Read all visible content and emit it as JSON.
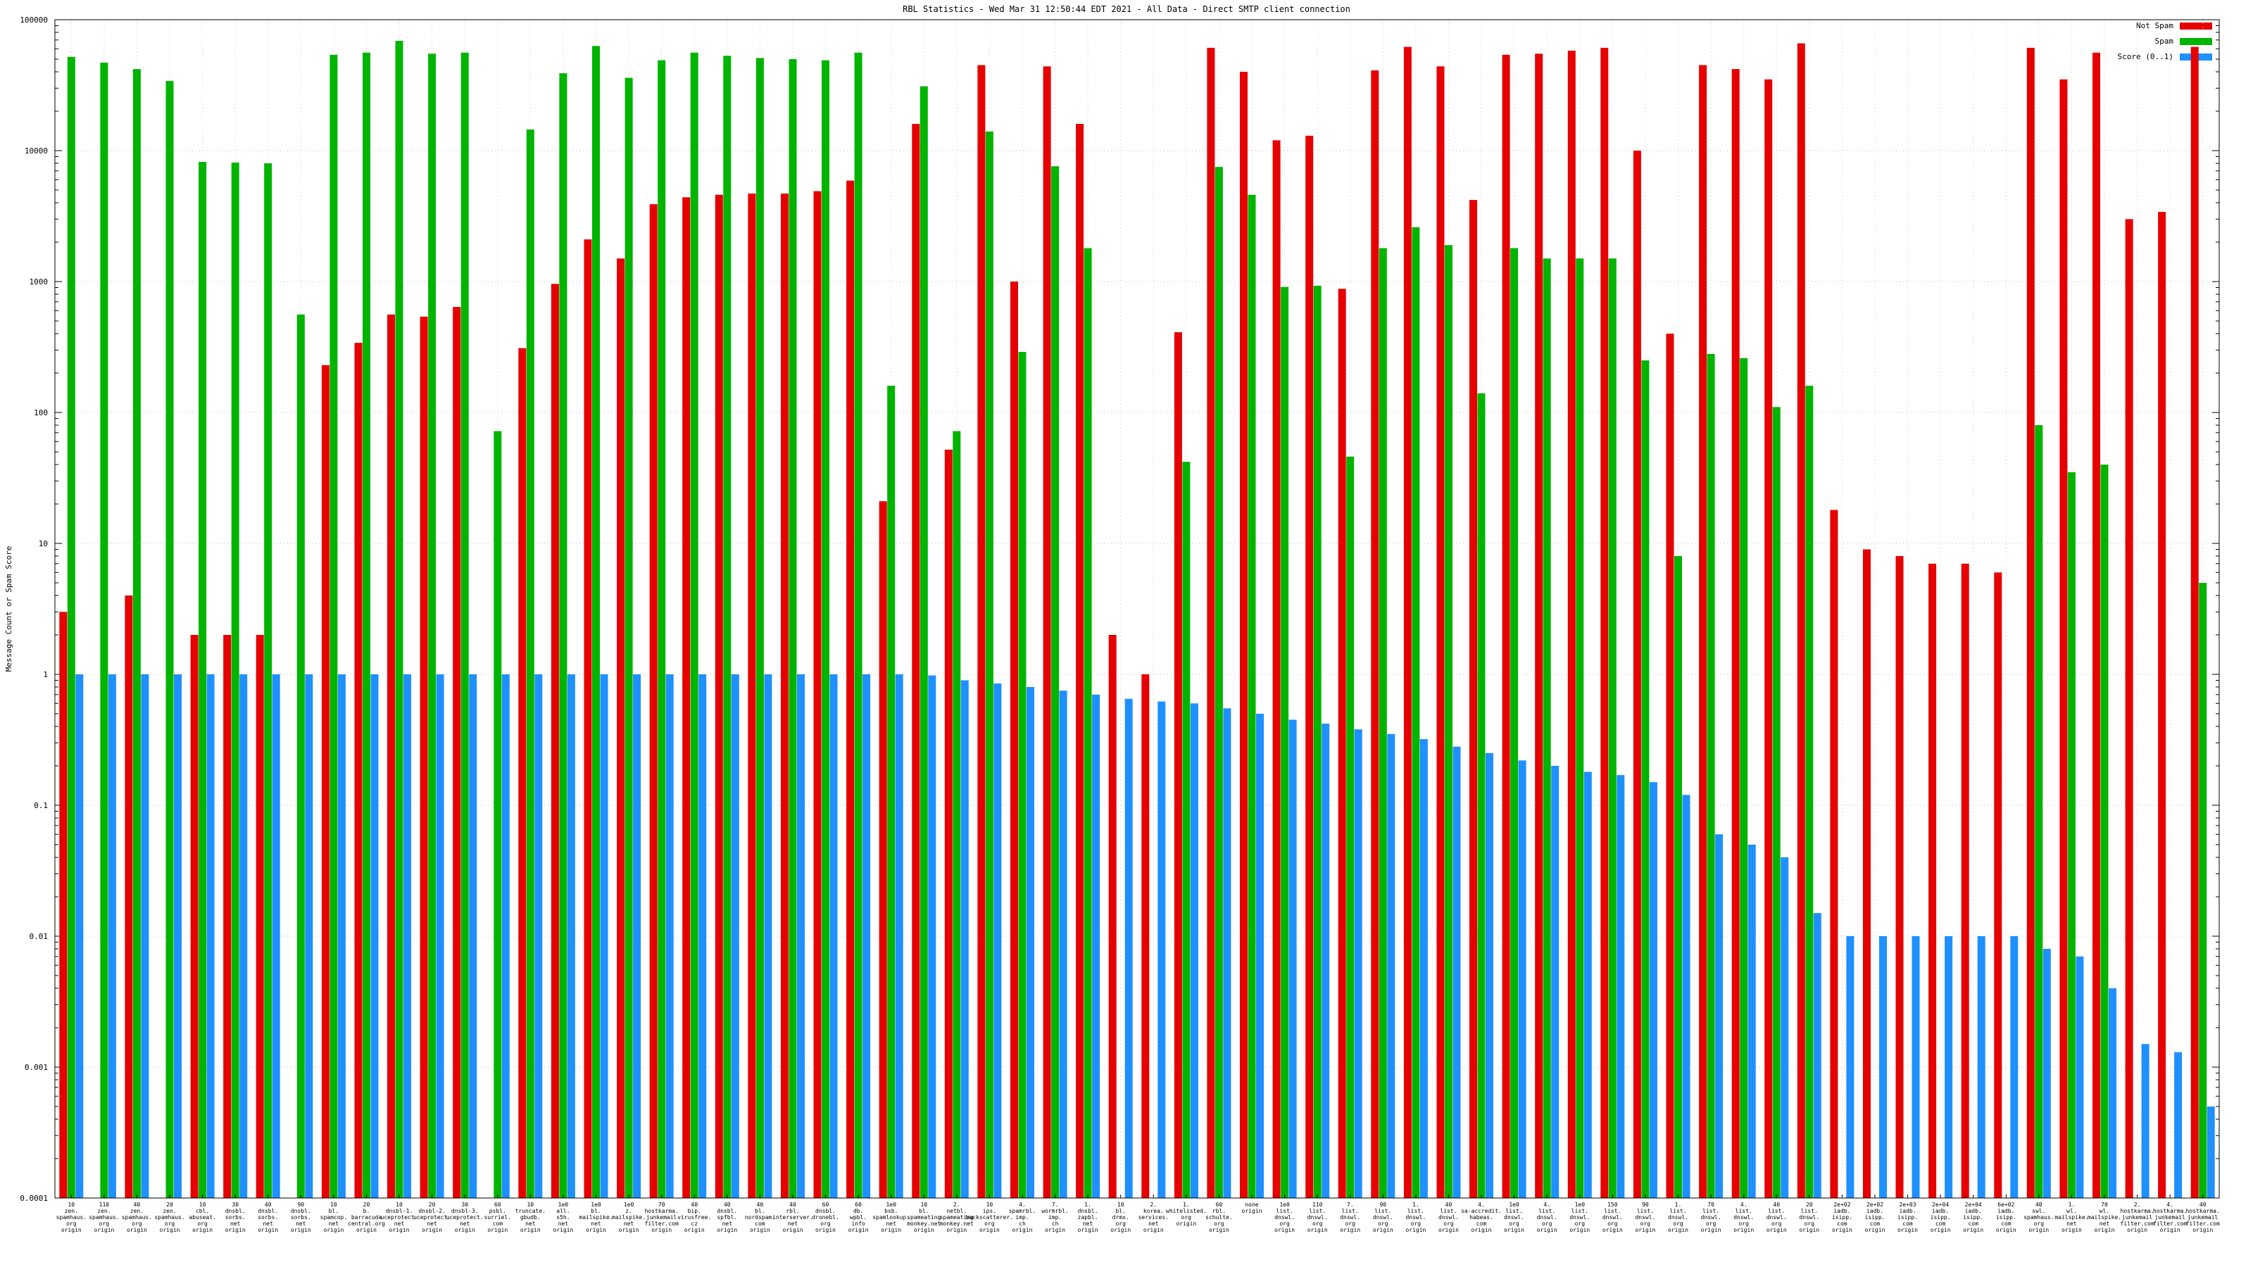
{
  "chart_data": {
    "type": "bar",
    "title": "RBL Statistics - Wed Mar 31 12:50:44 EDT 2021 - All Data - Direct SMTP client connection",
    "ylabel": "Message Count or Spam Score",
    "xlabel": "",
    "yscale": "log",
    "ylim": [
      0.0001,
      100000
    ],
    "yticks": [
      "100000",
      "10000",
      "1000",
      "100",
      "10",
      "1",
      "0.1",
      "0.01",
      "0.001",
      "0.0001"
    ],
    "grid": "dotted",
    "legend_position": "top-right",
    "legend": [
      {
        "label": "Not Spam",
        "color": "#e60000"
      },
      {
        "label": "Spam",
        "color": "#00b400"
      },
      {
        "label": "Score (0..1)",
        "color": "#1e90ff"
      }
    ],
    "series_names": [
      "Not Spam",
      "Spam",
      "Score (0..1)"
    ],
    "groups": [
      {
        "label": [
          "10",
          "zen.",
          "spamhaus.",
          "org",
          "origin"
        ],
        "not_spam": 3,
        "spam": 52000,
        "score": 1.0
      },
      {
        "label": [
          "110",
          "zen.",
          "spamhaus.",
          "org",
          "origin"
        ],
        "not_spam": 0,
        "spam": 47000,
        "score": 1.0
      },
      {
        "label": [
          "40",
          "zen.",
          "spamhaus.",
          "org",
          "origin"
        ],
        "not_spam": 4,
        "spam": 42000,
        "score": 1.0
      },
      {
        "label": [
          "20",
          "zen.",
          "spamhaus.",
          "org",
          "origin"
        ],
        "not_spam": 0,
        "spam": 34000,
        "score": 1.0
      },
      {
        "label": [
          "10",
          "cbl.",
          "abuseat.",
          "org",
          "origin"
        ],
        "not_spam": 2,
        "spam": 8200,
        "score": 1.0
      },
      {
        "label": [
          "30",
          "dnsbl.",
          "sorbs.",
          "net",
          "origin"
        ],
        "not_spam": 2,
        "spam": 8100,
        "score": 1.0
      },
      {
        "label": [
          "40",
          "dnsbl.",
          "sorbs.",
          "net",
          "origin"
        ],
        "not_spam": 2,
        "spam": 8000,
        "score": 1.0
      },
      {
        "label": [
          "90",
          "dnsbl.",
          "sorbs.",
          "net",
          "origin"
        ],
        "not_spam": 0,
        "spam": 560,
        "score": 1.0
      },
      {
        "label": [
          "10",
          "bl.",
          "spamcop.",
          "net",
          "origin"
        ],
        "not_spam": 230,
        "spam": 54000,
        "score": 1.0
      },
      {
        "label": [
          "20",
          "b.",
          "barracuda",
          "central.org",
          "origin"
        ],
        "not_spam": 340,
        "spam": 56000,
        "score": 1.0
      },
      {
        "label": [
          "10",
          "dnsbl-1.",
          "uceprotect.",
          "net",
          "origin"
        ],
        "not_spam": 560,
        "spam": 69000,
        "score": 1.0
      },
      {
        "label": [
          "20",
          "dnsbl-2.",
          "uceprotect.",
          "net",
          "origin"
        ],
        "not_spam": 540,
        "spam": 55000,
        "score": 1.0
      },
      {
        "label": [
          "30",
          "dnsbl-3.",
          "uceprotect.",
          "net",
          "origin"
        ],
        "not_spam": 640,
        "spam": 56000,
        "score": 1.0
      },
      {
        "label": [
          "60",
          "psbl.",
          "surriel.",
          "com",
          "origin"
        ],
        "not_spam": 0,
        "spam": 72,
        "score": 1.0
      },
      {
        "label": [
          "10",
          "truncate.",
          "gbudb.",
          "net",
          "origin"
        ],
        "not_spam": 310,
        "spam": 14500,
        "score": 1.0
      },
      {
        "label": [
          "1e0",
          "all.",
          "s5h.",
          "net",
          "origin"
        ],
        "not_spam": 960,
        "spam": 39000,
        "score": 1.0
      },
      {
        "label": [
          "1e0",
          "bl.",
          "mailspike.",
          "net",
          "origin"
        ],
        "not_spam": 2100,
        "spam": 63000,
        "score": 1.0
      },
      {
        "label": [
          "1e0",
          "z.",
          "mailspike.",
          "net",
          "origin"
        ],
        "not_spam": 1500,
        "spam": 36000,
        "score": 1.0
      },
      {
        "label": [
          "70",
          "hostkarma.",
          "junkemail",
          "filter.com",
          "origin"
        ],
        "not_spam": 3900,
        "spam": 49000,
        "score": 1.0
      },
      {
        "label": [
          "40",
          "bip.",
          "virusfree.",
          "cz",
          "origin"
        ],
        "not_spam": 4400,
        "spam": 56000,
        "score": 1.0
      },
      {
        "label": [
          "40",
          "dnsbl.",
          "spfbl.",
          "net",
          "origin"
        ],
        "not_spam": 4600,
        "spam": 53000,
        "score": 1.0
      },
      {
        "label": [
          "40",
          "bl.",
          "nordspam.",
          "com",
          "origin"
        ],
        "not_spam": 4700,
        "spam": 51000,
        "score": 1.0
      },
      {
        "label": [
          "40",
          "rbl.",
          "interserver.",
          "net",
          "origin"
        ],
        "not_spam": 4700,
        "spam": 50000,
        "score": 1.0
      },
      {
        "label": [
          "60",
          "dnsbl.",
          "dronebl.",
          "org",
          "origin"
        ],
        "not_spam": 4900,
        "spam": 49000,
        "score": 1.0
      },
      {
        "label": [
          "60",
          "db.",
          "wpbl.",
          "info",
          "origin"
        ],
        "not_spam": 5900,
        "spam": 56000,
        "score": 1.0
      },
      {
        "label": [
          "1e0",
          "bsb.",
          "spamlookup.",
          "net",
          "origin"
        ],
        "not_spam": 21,
        "spam": 160,
        "score": 1.0
      },
      {
        "label": [
          "10",
          "bl.",
          "spameating",
          "monkey.net",
          "origin"
        ],
        "not_spam": 16000,
        "spam": 31000,
        "score": 0.98
      },
      {
        "label": [
          "2.",
          "netbl.",
          "spameating",
          "monkey.net",
          "origin"
        ],
        "not_spam": 52,
        "spam": 72,
        "score": 0.9
      },
      {
        "label": [
          "10",
          "ips.",
          "backscatterer.",
          "org",
          "origin"
        ],
        "not_spam": 45000,
        "spam": 14000,
        "score": 0.85
      },
      {
        "label": [
          "4.",
          "spamrbl.",
          "imp.",
          "ch",
          "origin"
        ],
        "not_spam": 1000,
        "spam": 290,
        "score": 0.8
      },
      {
        "label": [
          "7.",
          "wormrbl.",
          "imp.",
          "ch",
          "origin"
        ],
        "not_spam": 44000,
        "spam": 7600,
        "score": 0.75
      },
      {
        "label": [
          "1.",
          "dnsbl.",
          "zapbl.",
          "net",
          "origin"
        ],
        "not_spam": 16000,
        "spam": 1800,
        "score": 0.7
      },
      {
        "label": [
          "10",
          "bl.",
          "drmx.",
          "org",
          "origin"
        ],
        "not_spam": 2,
        "spam": 0,
        "score": 0.65
      },
      {
        "label": [
          "2.",
          "korea.",
          "services.",
          "net",
          "origin"
        ],
        "not_spam": 1,
        "spam": 0,
        "score": 0.62
      },
      {
        "label": [
          "1.",
          "whitelisted.",
          "org",
          "origin"
        ],
        "not_spam": 410,
        "spam": 42,
        "score": 0.6
      },
      {
        "label": [
          "60",
          "rbl.",
          "schulte.",
          "org",
          "origin"
        ],
        "not_spam": 61000,
        "spam": 7500,
        "score": 0.55
      },
      {
        "label": [
          "none",
          "origin"
        ],
        "not_spam": 40000,
        "spam": 4600,
        "score": 0.5
      },
      {
        "label": [
          "1e0",
          "list.",
          "dnswl.",
          "org",
          "origin"
        ],
        "not_spam": 12000,
        "spam": 910,
        "score": 0.45
      },
      {
        "label": [
          "110",
          "list.",
          "dnswl.",
          "org",
          "origin"
        ],
        "not_spam": 13000,
        "spam": 930,
        "score": 0.42
      },
      {
        "label": [
          "7.",
          "list.",
          "dnswl.",
          "org",
          "origin"
        ],
        "not_spam": 880,
        "spam": 46,
        "score": 0.38
      },
      {
        "label": [
          "90",
          "list.",
          "dnswl.",
          "org",
          "origin"
        ],
        "not_spam": 41000,
        "spam": 1800,
        "score": 0.35
      },
      {
        "label": [
          "1.",
          "list.",
          "dnswl.",
          "org",
          "origin"
        ],
        "not_spam": 62000,
        "spam": 2600,
        "score": 0.32
      },
      {
        "label": [
          "40",
          "list.",
          "dnswl.",
          "org",
          "origin"
        ],
        "not_spam": 44000,
        "spam": 1900,
        "score": 0.28
      },
      {
        "label": [
          "4.",
          "sa-accredit.",
          "habeas.",
          "com",
          "origin"
        ],
        "not_spam": 4200,
        "spam": 140,
        "score": 0.25
      },
      {
        "label": [
          "1e0",
          "list.",
          "dnswl.",
          "org",
          "origin"
        ],
        "not_spam": 54000,
        "spam": 1800,
        "score": 0.22
      },
      {
        "label": [
          "4.",
          "list.",
          "dnswl.",
          "org",
          "origin"
        ],
        "not_spam": 55000,
        "spam": 1500,
        "score": 0.2
      },
      {
        "label": [
          "1e0",
          "list.",
          "dnswl.",
          "org",
          "origin"
        ],
        "not_spam": 58000,
        "spam": 1500,
        "score": 0.18
      },
      {
        "label": [
          "150",
          "list.",
          "dnswl.",
          "org",
          "origin"
        ],
        "not_spam": 61000,
        "spam": 1500,
        "score": 0.17
      },
      {
        "label": [
          "90",
          "list.",
          "dnswl.",
          "org",
          "origin"
        ],
        "not_spam": 10000,
        "spam": 250,
        "score": 0.15
      },
      {
        "label": [
          "1.",
          "list.",
          "dnswl.",
          "org",
          "origin"
        ],
        "not_spam": 400,
        "spam": 8,
        "score": 0.12
      },
      {
        "label": [
          "70",
          "list.",
          "dnswl.",
          "org",
          "origin"
        ],
        "not_spam": 45000,
        "spam": 280,
        "score": 0.06
      },
      {
        "label": [
          "4.",
          "list.",
          "dnswl.",
          "org",
          "origin"
        ],
        "not_spam": 42000,
        "spam": 260,
        "score": 0.05
      },
      {
        "label": [
          "40",
          "list.",
          "dnswl.",
          "org",
          "origin"
        ],
        "not_spam": 35000,
        "spam": 110,
        "score": 0.04
      },
      {
        "label": [
          "20",
          "list.",
          "dnswl.",
          "org",
          "origin"
        ],
        "not_spam": 66000,
        "spam": 160,
        "score": 0.015
      },
      {
        "label": [
          "2e+02",
          "iadb.",
          "isipp.",
          "com",
          "origin"
        ],
        "not_spam": 18,
        "spam": 0,
        "score": 0.01
      },
      {
        "label": [
          "2e+02",
          "iadb.",
          "isipp.",
          "com",
          "origin"
        ],
        "not_spam": 9,
        "spam": 0,
        "score": 0.01
      },
      {
        "label": [
          "2e+03",
          "iadb.",
          "isipp.",
          "com",
          "origin"
        ],
        "not_spam": 8,
        "spam": 0,
        "score": 0.01
      },
      {
        "label": [
          "2e+04",
          "iadb.",
          "isipp.",
          "com",
          "origin"
        ],
        "not_spam": 7,
        "spam": 0,
        "score": 0.01
      },
      {
        "label": [
          "2e+04",
          "iadb.",
          "isipp.",
          "com",
          "origin"
        ],
        "not_spam": 7,
        "spam": 0,
        "score": 0.01
      },
      {
        "label": [
          "6e+02",
          "iadb.",
          "isipp.",
          "com",
          "origin"
        ],
        "not_spam": 6,
        "spam": 0,
        "score": 0.01
      },
      {
        "label": [
          "40",
          "swl.",
          "spamhaus.",
          "org",
          "origin"
        ],
        "not_spam": 61000,
        "spam": 80,
        "score": 0.008
      },
      {
        "label": [
          "1.",
          "wl.",
          "mailspike.",
          "net",
          "origin"
        ],
        "not_spam": 35000,
        "spam": 35,
        "score": 0.007
      },
      {
        "label": [
          "70",
          "wl.",
          "mailspike.",
          "net",
          "origin"
        ],
        "not_spam": 56000,
        "spam": 40,
        "score": 0.004
      },
      {
        "label": [
          "2.",
          "hostkarma.",
          "junkemail",
          "filter.com",
          "origin"
        ],
        "not_spam": 3000,
        "spam": 0,
        "score": 0.0015
      },
      {
        "label": [
          "4.",
          "hostkarma.",
          "junkemail",
          "filter.com",
          "origin"
        ],
        "not_spam": 3400,
        "spam": 0,
        "score": 0.0013
      },
      {
        "label": [
          "40",
          "hostkarma.",
          "junkemail",
          "filter.com",
          "origin"
        ],
        "not_spam": 62000,
        "spam": 5,
        "score": 0.0005
      }
    ]
  }
}
